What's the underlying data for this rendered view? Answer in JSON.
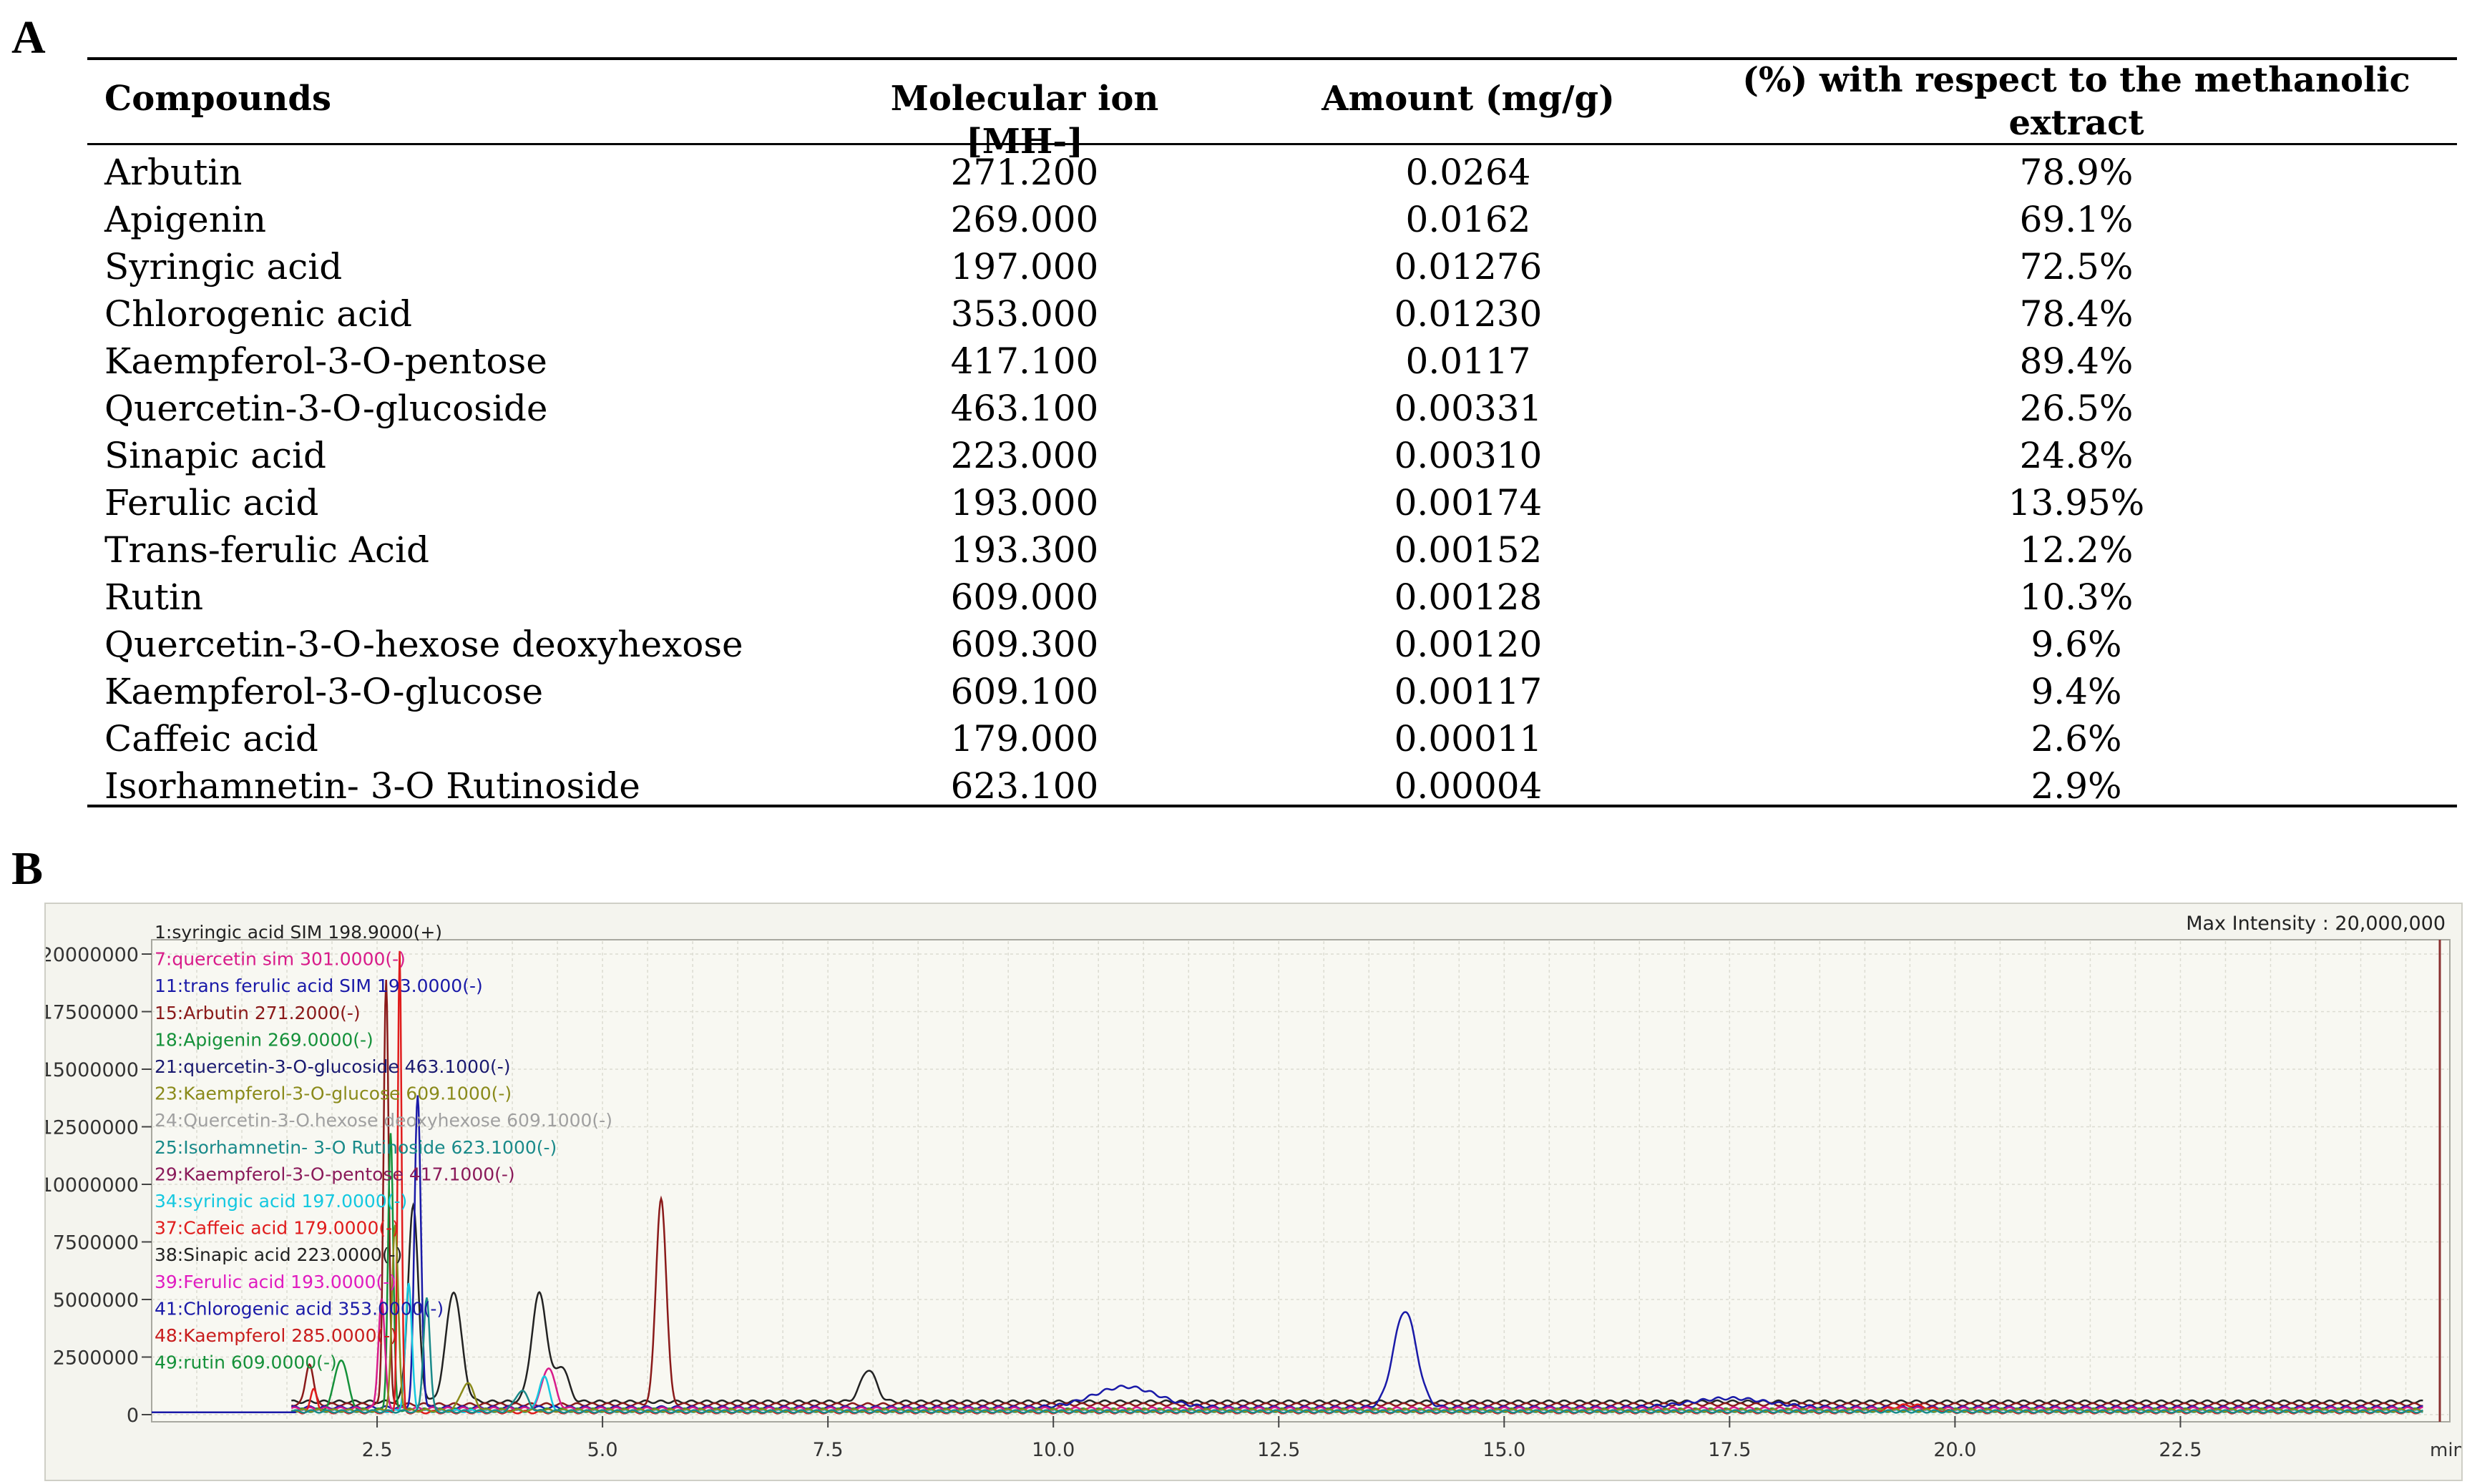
{
  "panels": {
    "a": "A",
    "b": "B"
  },
  "table": {
    "headers": {
      "compounds": "Compounds",
      "molecular_ion": "Molecular ion [MH-]",
      "amount": "Amount (mg/g)",
      "percent_line1": "(%) with respect to the methanolic",
      "percent_line2": "extract"
    },
    "rows": [
      [
        "Arbutin",
        "271.200",
        "0.0264",
        "78.9%"
      ],
      [
        "Apigenin",
        "269.000",
        "0.0162",
        "69.1%"
      ],
      [
        "Syringic acid",
        "197.000",
        "0.01276",
        "72.5%"
      ],
      [
        "Chlorogenic acid",
        "353.000",
        "0.01230",
        "78.4%"
      ],
      [
        "Kaempferol-3-O-pentose",
        "417.100",
        "0.0117",
        "89.4%"
      ],
      [
        "Quercetin-3-O-glucoside",
        "463.100",
        "0.00331",
        "26.5%"
      ],
      [
        "Sinapic acid",
        "223.000",
        "0.00310",
        "24.8%"
      ],
      [
        "Ferulic acid",
        "193.000",
        "0.00174",
        "13.95%"
      ],
      [
        "Trans-ferulic Acid",
        "193.300",
        "0.00152",
        "12.2%"
      ],
      [
        "Rutin",
        "609.000",
        "0.00128",
        "10.3%"
      ],
      [
        "Quercetin-3-O-hexose deoxyhexose",
        "609.300",
        "0.00120",
        "9.6%"
      ],
      [
        "Kaempferol-3-O-glucose",
        "609.100",
        "0.00117",
        "9.4%"
      ],
      [
        "Caffeic acid",
        "179.000",
        "0.00011",
        "2.6%"
      ],
      [
        "Isorhamnetin- 3-O Rutinoside",
        "623.100",
        "0.00004",
        "2.9%"
      ]
    ]
  },
  "chromatogram": {
    "max_intensity": "Max Intensity : 20,000,000",
    "x_unit": "min",
    "x_ticks": [
      "2.5",
      "5.0",
      "7.5",
      "10.0",
      "12.5",
      "15.0",
      "17.5",
      "20.0",
      "22.5"
    ],
    "y_ticks": [
      "20000000",
      "17500000",
      "15000000",
      "12500000",
      "10000000",
      "7500000",
      "5000000",
      "2500000",
      "0"
    ],
    "legend": [
      {
        "label": "1:syringic acid SIM 198.9000(+)",
        "color": "#222222"
      },
      {
        "label": "7:quercetin sim 301.0000(-)",
        "color": "#d81b8a"
      },
      {
        "label": "11:trans ferulic acid SIM 193.0000(-)",
        "color": "#1a1aa8"
      },
      {
        "label": "15:Arbutin 271.2000(-)",
        "color": "#8a1a1a"
      },
      {
        "label": "18:Apigenin 269.0000(-)",
        "color": "#15913a"
      },
      {
        "label": "21:quercetin-3-O-glucoside 463.1000(-)",
        "color": "#1a1a70"
      },
      {
        "label": "23:Kaempferol-3-O-glucose 609.1000(-)",
        "color": "#8a8a1a"
      },
      {
        "label": "24:Quercetin-3-O.hexose deoxyhexose 609.1000(-)",
        "color": "#a0a0a0"
      },
      {
        "label": "25:Isorhamnetin- 3-O Rutinoside 623.1000(-)",
        "color": "#1a8a8a"
      },
      {
        "label": "29:Kaempferol-3-O-pentose 417.1000(-)",
        "color": "#8a1a5a"
      },
      {
        "label": "34:syringic acid 197.0000(-)",
        "color": "#14c8e0"
      },
      {
        "label": "37:Caffeic acid 179.0000(-)",
        "color": "#e01c1c"
      },
      {
        "label": "38:Sinapic acid 223.0000(-)",
        "color": "#222222"
      },
      {
        "label": "39:Ferulic acid 193.0000(-)",
        "color": "#e01cc0"
      },
      {
        "label": "41:Chlorogenic acid 353.0000(-)",
        "color": "#1a1aa8"
      },
      {
        "label": "48:Kaempferol 285.0000(-)",
        "color": "#c81c1c"
      },
      {
        "label": "49:rutin 609.0000(-)",
        "color": "#15913a"
      }
    ],
    "traces": [
      {
        "color": "#222222",
        "peaks": [
          [
            2.9,
            8500000,
            0.08
          ],
          [
            3.35,
            4800000,
            0.12
          ],
          [
            4.3,
            4700000,
            0.12
          ],
          [
            4.55,
            1500000,
            0.1
          ],
          [
            7.95,
            1400000,
            0.12
          ]
        ],
        "baseline": 500000
      },
      {
        "color": "#8a1a1a",
        "peaks": [
          [
            1.75,
            1800000,
            0.06
          ],
          [
            5.65,
            9000000,
            0.08
          ],
          [
            2.6,
            18500000,
            0.04
          ]
        ],
        "baseline": 380000
      },
      {
        "color": "#1a1aa8",
        "peaks": [
          [
            2.95,
            13500000,
            0.05
          ],
          [
            10.8,
            900000,
            0.5
          ],
          [
            13.9,
            4200000,
            0.18
          ],
          [
            17.5,
            400000,
            0.6
          ]
        ],
        "baseline": 250000
      },
      {
        "color": "#15913a",
        "peaks": [
          [
            2.65,
            12000000,
            0.04
          ],
          [
            2.1,
            2200000,
            0.1
          ]
        ],
        "baseline": 150000
      },
      {
        "color": "#d81b8a",
        "peaks": [
          [
            2.55,
            4800000,
            0.05
          ],
          [
            4.4,
            1800000,
            0.1
          ]
        ],
        "baseline": 200000
      },
      {
        "color": "#14c8e0",
        "peaks": [
          [
            2.85,
            5500000,
            0.05
          ],
          [
            4.35,
            1500000,
            0.08
          ]
        ],
        "baseline": 100000
      },
      {
        "color": "#e01c1c",
        "peaks": [
          [
            2.75,
            20000000,
            0.03
          ],
          [
            1.8,
            1000000,
            0.05
          ],
          [
            19.5,
            300000,
            0.3
          ]
        ],
        "baseline": 50000
      },
      {
        "color": "#8a8a1a",
        "peaks": [
          [
            2.7,
            8000000,
            0.05
          ],
          [
            3.5,
            1200000,
            0.1
          ]
        ],
        "baseline": 120000
      },
      {
        "color": "#1a8a8a",
        "peaks": [
          [
            3.05,
            5000000,
            0.05
          ],
          [
            4.1,
            900000,
            0.1
          ]
        ],
        "baseline": 80000
      }
    ]
  }
}
